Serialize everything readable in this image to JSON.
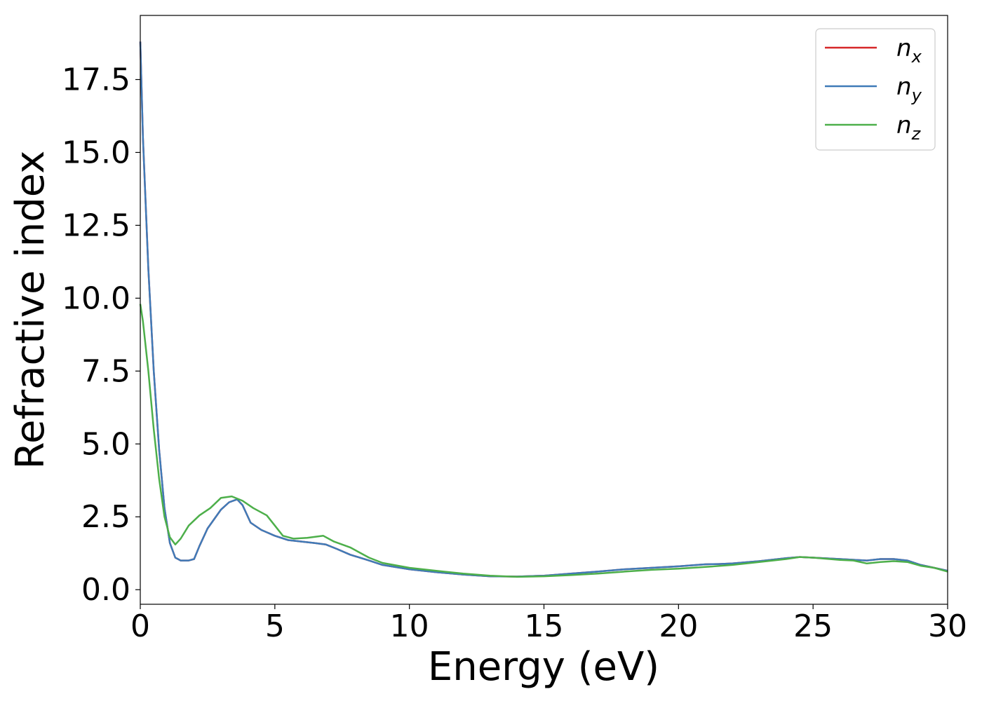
{
  "chart_data": {
    "type": "line",
    "xlabel": "Energy (eV)",
    "ylabel": "Refractive index",
    "xlim": [
      0,
      30
    ],
    "ylim": [
      -0.5,
      19.7
    ],
    "xticks": [
      0,
      5,
      10,
      15,
      20,
      25,
      30
    ],
    "xtick_labels": [
      "0",
      "5",
      "10",
      "15",
      "20",
      "25",
      "30"
    ],
    "yticks": [
      0,
      2.5,
      5,
      7.5,
      10,
      12.5,
      15,
      17.5
    ],
    "ytick_labels": [
      "0.0",
      "2.5",
      "5.0",
      "7.5",
      "10.0",
      "12.5",
      "15.0",
      "17.5"
    ],
    "grid": false,
    "legend_position": "top-right",
    "legend": [
      {
        "base": "n",
        "sub": "x",
        "color": "#d62728"
      },
      {
        "base": "n",
        "sub": "y",
        "color": "#3f7bb8"
      },
      {
        "base": "n",
        "sub": "z",
        "color": "#4daf4a"
      }
    ],
    "series": [
      {
        "color": "#d62728",
        "x": [
          0,
          0.1,
          0.3,
          0.5,
          0.7,
          0.9,
          1.1,
          1.3,
          1.5,
          1.8,
          2.0,
          2.2,
          2.5,
          3.0,
          3.3,
          3.6,
          3.8,
          4.1,
          4.5,
          5.0,
          5.5,
          6.0,
          6.5,
          6.9,
          7.3,
          7.8,
          8.5,
          9.0,
          10.0,
          11.0,
          12.0,
          13.0,
          14.0,
          15.0,
          16.0,
          17.0,
          18.0,
          19.0,
          20.0,
          21.0,
          21.5,
          22.0,
          23.0,
          24.0,
          24.5,
          25.0,
          26.0,
          27.0,
          27.5,
          28.0,
          28.5,
          29.0,
          29.5,
          30.0
        ],
        "y": [
          18.8,
          15.5,
          11.0,
          7.5,
          4.8,
          2.8,
          1.6,
          1.1,
          1.0,
          1.0,
          1.05,
          1.5,
          2.1,
          2.75,
          3.0,
          3.1,
          2.9,
          2.3,
          2.05,
          1.85,
          1.7,
          1.65,
          1.6,
          1.55,
          1.4,
          1.2,
          1.0,
          0.85,
          0.7,
          0.6,
          0.52,
          0.46,
          0.45,
          0.48,
          0.55,
          0.62,
          0.7,
          0.75,
          0.8,
          0.87,
          0.88,
          0.9,
          0.98,
          1.08,
          1.12,
          1.1,
          1.05,
          1.0,
          1.05,
          1.05,
          1.0,
          0.85,
          0.75,
          0.65
        ]
      },
      {
        "color": "#3f7bb8",
        "x": [
          0,
          0.1,
          0.3,
          0.5,
          0.7,
          0.9,
          1.1,
          1.3,
          1.5,
          1.8,
          2.0,
          2.2,
          2.5,
          3.0,
          3.3,
          3.6,
          3.8,
          4.1,
          4.5,
          5.0,
          5.5,
          6.0,
          6.5,
          6.9,
          7.3,
          7.8,
          8.5,
          9.0,
          10.0,
          11.0,
          12.0,
          13.0,
          14.0,
          15.0,
          16.0,
          17.0,
          18.0,
          19.0,
          20.0,
          21.0,
          21.5,
          22.0,
          23.0,
          24.0,
          24.5,
          25.0,
          26.0,
          27.0,
          27.5,
          28.0,
          28.5,
          29.0,
          29.5,
          30.0
        ],
        "y": [
          18.8,
          15.5,
          11.0,
          7.5,
          4.8,
          2.8,
          1.6,
          1.1,
          1.0,
          1.0,
          1.05,
          1.5,
          2.1,
          2.75,
          3.0,
          3.1,
          2.9,
          2.3,
          2.05,
          1.85,
          1.7,
          1.65,
          1.6,
          1.55,
          1.4,
          1.2,
          1.0,
          0.85,
          0.7,
          0.6,
          0.52,
          0.46,
          0.45,
          0.48,
          0.55,
          0.62,
          0.7,
          0.75,
          0.8,
          0.87,
          0.88,
          0.9,
          0.98,
          1.08,
          1.12,
          1.1,
          1.05,
          1.0,
          1.05,
          1.05,
          1.0,
          0.85,
          0.75,
          0.65
        ]
      },
      {
        "color": "#4daf4a",
        "x": [
          0,
          0.1,
          0.3,
          0.5,
          0.7,
          0.9,
          1.1,
          1.3,
          1.5,
          1.8,
          2.2,
          2.6,
          3.0,
          3.4,
          3.8,
          4.2,
          4.7,
          5.0,
          5.3,
          5.7,
          6.2,
          6.8,
          7.2,
          7.8,
          8.5,
          9.0,
          10.0,
          11.0,
          12.0,
          13.0,
          14.0,
          15.0,
          16.0,
          17.0,
          18.0,
          19.0,
          20.0,
          21.0,
          22.0,
          23.0,
          24.0,
          24.5,
          25.0,
          26.0,
          26.5,
          27.0,
          27.5,
          28.0,
          28.5,
          29.0,
          29.5,
          30.0
        ],
        "y": [
          9.8,
          9.2,
          7.5,
          5.5,
          3.8,
          2.5,
          1.8,
          1.55,
          1.75,
          2.2,
          2.55,
          2.8,
          3.15,
          3.2,
          3.05,
          2.8,
          2.55,
          2.2,
          1.85,
          1.75,
          1.78,
          1.85,
          1.65,
          1.45,
          1.1,
          0.92,
          0.75,
          0.65,
          0.55,
          0.48,
          0.44,
          0.46,
          0.5,
          0.55,
          0.62,
          0.68,
          0.72,
          0.78,
          0.85,
          0.95,
          1.05,
          1.12,
          1.1,
          1.02,
          1.0,
          0.9,
          0.95,
          0.98,
          0.95,
          0.82,
          0.75,
          0.62
        ]
      }
    ]
  }
}
